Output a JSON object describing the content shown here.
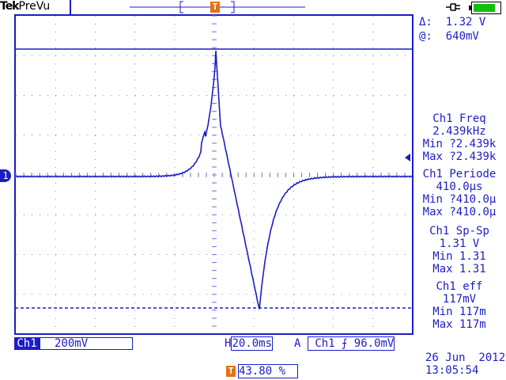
{
  "header": {
    "brand": "Tek",
    "mode": "PreVu",
    "trigger_marker": "T",
    "power_icon": "power-plug-icon",
    "battery_icon": "battery-icon",
    "battery_level": 0.9
  },
  "cursor": {
    "delta_label": "Δ:",
    "delta_value": "1.32 V",
    "at_label": "@:",
    "at_value": "640mV"
  },
  "measurements": [
    {
      "title": "Ch1 Freq",
      "value": "2.439kHz",
      "min": "Min ?2.439k",
      "max": "Max ?2.439k"
    },
    {
      "title": "Ch1 Periode",
      "value": "410.0µs",
      "min": "Min ?410.0µ",
      "max": "Max ?410.0µ"
    },
    {
      "title": "Ch1 Sp-Sp",
      "value": "1.31 V",
      "min": "Min 1.31",
      "max": "Max 1.31"
    },
    {
      "title": "Ch1 eff",
      "value": "117mV",
      "min": "Min 117m",
      "max": "Max 117m"
    }
  ],
  "status": {
    "channel": "Ch1",
    "vscale": "200mV",
    "h_label": "H",
    "hscale": "20.0ms",
    "trig_label": "A",
    "trig_source": "Ch1",
    "trig_slope": "⨍",
    "trig_level": "96.0mV",
    "trig_pos_marker": "T",
    "trig_pos": "43.80 %",
    "date": "26 Jun  2012",
    "time": "13:05:54"
  },
  "ground_marker": "1",
  "colors": {
    "trace": "#1c1cc8",
    "trigger": "#e87010",
    "grid": "#7a7ad0"
  }
}
